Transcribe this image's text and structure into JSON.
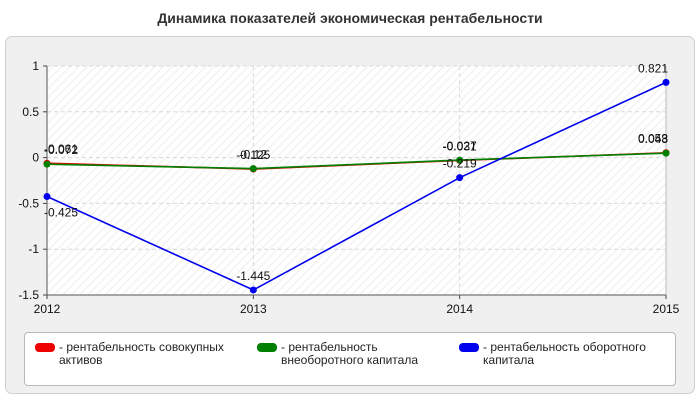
{
  "chart_data": {
    "type": "line",
    "title": "Динамика показателей экономическая рентабельности",
    "categories": [
      "2012",
      "2013",
      "2014",
      "2015"
    ],
    "ylim": [
      -1.5,
      1
    ],
    "yticks": [
      1,
      0.5,
      0,
      -0.5,
      -1,
      -1.5
    ],
    "ytick_labels": [
      "1",
      "0.5",
      "0",
      "-0.5",
      "-1",
      "-1.5"
    ],
    "grid": true,
    "legend_position": "bottom",
    "series": [
      {
        "name": "рентабельность совокупных активов",
        "color": "#ee0000",
        "values": [
          -0.061,
          -0.125,
          -0.031,
          0.053
        ],
        "labels": [
          "-0.061",
          "-0.125",
          "-0.031",
          "0.053"
        ]
      },
      {
        "name": "рентабельность внеоборотного капитала",
        "color": "#008000",
        "values": [
          -0.072,
          -0.12,
          -0.027,
          0.048
        ],
        "labels": [
          "-0.072",
          "-0.12",
          "-0.027",
          "0.048"
        ]
      },
      {
        "name": "рентабельность оборотного капитала",
        "color": "#0000ee",
        "values": [
          -0.425,
          -1.445,
          -0.219,
          0.821
        ],
        "labels": [
          "-0.425",
          "-1.445",
          "-0.219",
          "0.821"
        ]
      }
    ]
  }
}
